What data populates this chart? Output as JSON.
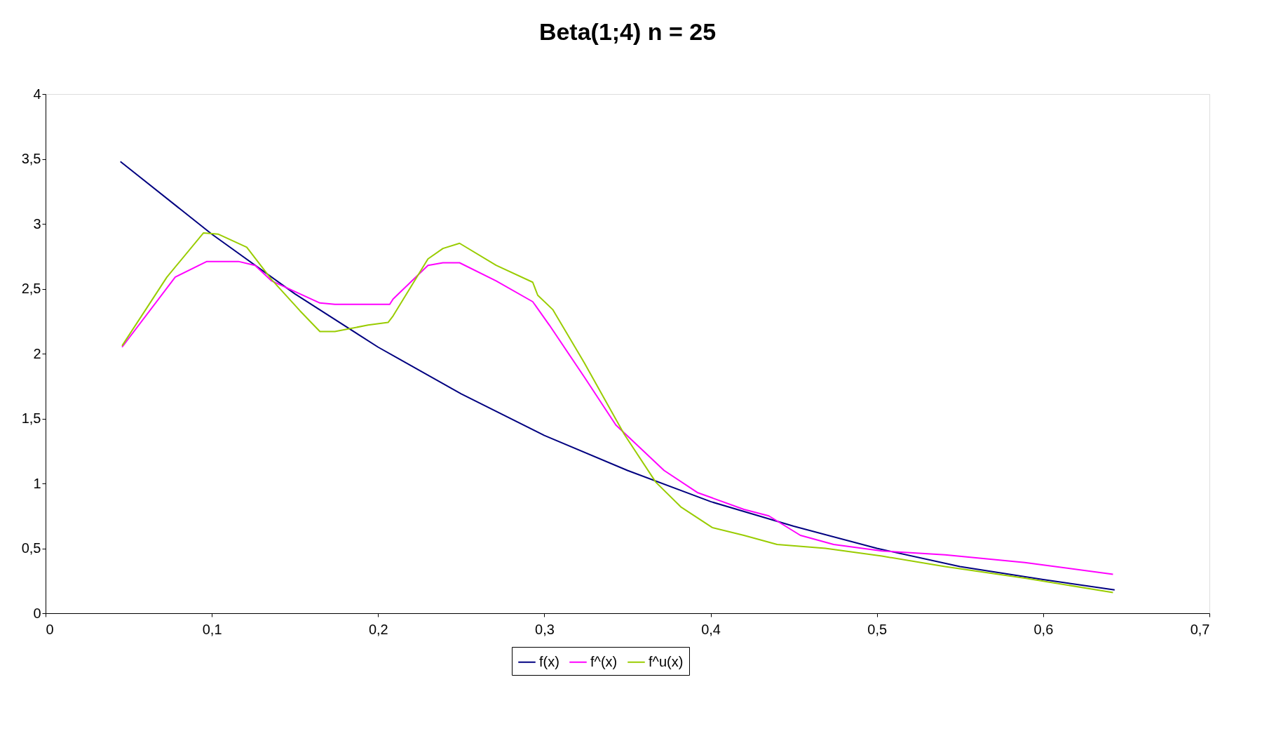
{
  "chart_data": {
    "type": "line",
    "title": "Beta(1;4) n = 25",
    "xlim": [
      0,
      0.7
    ],
    "ylim": [
      0,
      4
    ],
    "xticks": [
      0,
      {
        "value": 0.1,
        "label": "0,1"
      },
      {
        "value": 0.2,
        "label": "0,2"
      },
      {
        "value": 0.3,
        "label": "0,3"
      },
      {
        "value": 0.4,
        "label": "0,4"
      },
      {
        "value": 0.5,
        "label": "0,5"
      },
      {
        "value": 0.6,
        "label": "0,6"
      },
      {
        "value": 0.7,
        "label": "0,7"
      }
    ],
    "yticks": [
      0,
      {
        "value": 0.5,
        "label": "0,5"
      },
      1,
      {
        "value": 1.5,
        "label": "1,5"
      },
      2,
      {
        "value": 2.5,
        "label": "2,5"
      },
      3,
      {
        "value": 3.5,
        "label": "3,5"
      },
      4
    ],
    "grid": false,
    "legend": "bottom",
    "line_style": "solid",
    "marker": "none",
    "series": [
      {
        "name": "f(x)",
        "color": "#000080",
        "x": [
          0.045,
          0.1,
          0.15,
          0.2,
          0.25,
          0.3,
          0.35,
          0.4,
          0.45,
          0.5,
          0.55,
          0.6,
          0.643
        ],
        "values": [
          3.48,
          2.92,
          2.46,
          2.05,
          1.69,
          1.37,
          1.1,
          0.86,
          0.67,
          0.5,
          0.36,
          0.26,
          0.18
        ]
      },
      {
        "name": "f^(x)",
        "color": "#ff00ff",
        "x": [
          0.046,
          0.078,
          0.097,
          0.116,
          0.126,
          0.136,
          0.165,
          0.174,
          0.207,
          0.209,
          0.23,
          0.239,
          0.249,
          0.271,
          0.293,
          0.303,
          0.324,
          0.343,
          0.372,
          0.392,
          0.42,
          0.435,
          0.454,
          0.474,
          0.503,
          0.541,
          0.589,
          0.642
        ],
        "values": [
          2.05,
          2.59,
          2.71,
          2.71,
          2.68,
          2.56,
          2.39,
          2.38,
          2.38,
          2.42,
          2.68,
          2.7,
          2.7,
          2.56,
          2.4,
          2.22,
          1.82,
          1.45,
          1.1,
          0.93,
          0.8,
          0.75,
          0.6,
          0.53,
          0.48,
          0.45,
          0.39,
          0.3
        ]
      },
      {
        "name": "f^u(x)",
        "color": "#99cc00",
        "x": [
          0.046,
          0.073,
          0.095,
          0.104,
          0.121,
          0.136,
          0.153,
          0.165,
          0.174,
          0.194,
          0.206,
          0.209,
          0.23,
          0.239,
          0.249,
          0.271,
          0.293,
          0.296,
          0.305,
          0.324,
          0.348,
          0.367,
          0.382,
          0.401,
          0.42,
          0.44,
          0.469,
          0.503,
          0.541,
          0.589,
          0.642
        ],
        "values": [
          2.06,
          2.59,
          2.93,
          2.92,
          2.82,
          2.57,
          2.33,
          2.17,
          2.17,
          2.22,
          2.24,
          2.29,
          2.73,
          2.81,
          2.85,
          2.68,
          2.55,
          2.45,
          2.34,
          1.93,
          1.38,
          1.01,
          0.82,
          0.66,
          0.6,
          0.53,
          0.5,
          0.44,
          0.36,
          0.27,
          0.16
        ]
      }
    ]
  }
}
